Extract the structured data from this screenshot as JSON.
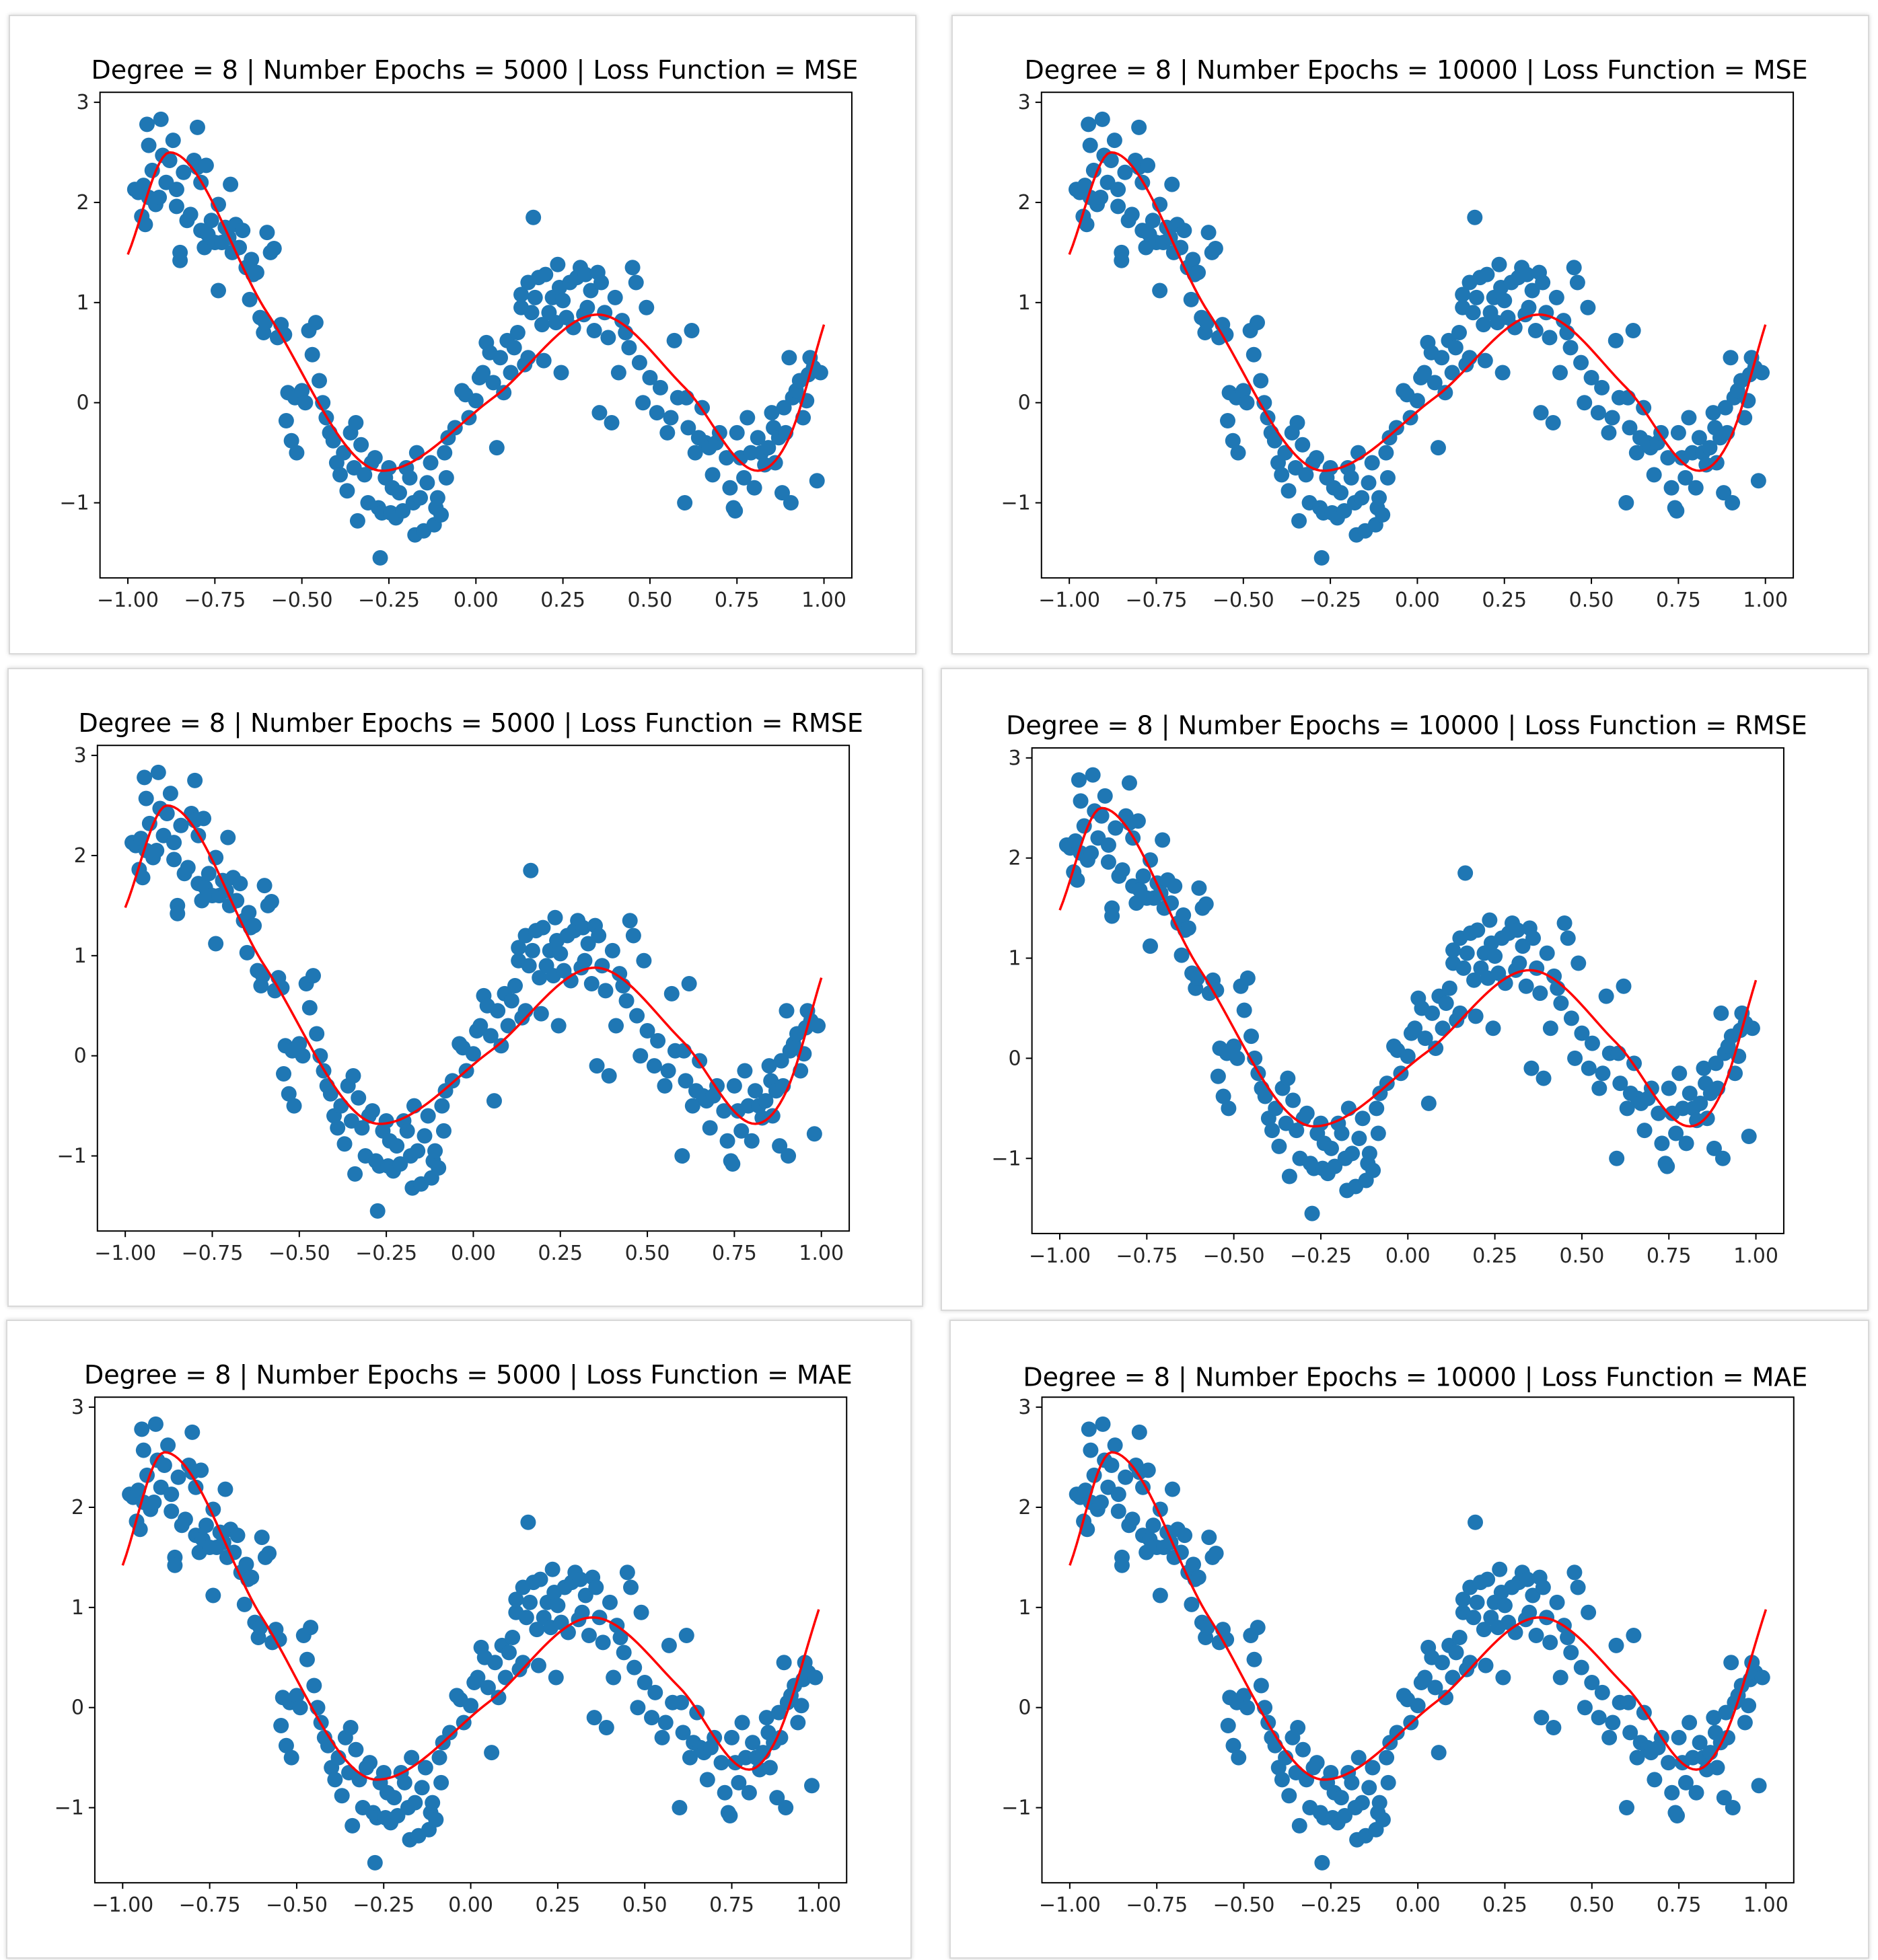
{
  "chart_data": [
    {
      "type": "scatter",
      "title": "Degree = 8 | Number Epochs = 5000 | Loss Function = MSE",
      "xlim": [
        -1.08,
        1.08
      ],
      "ylim": [
        -1.75,
        3.1
      ],
      "xticks": [
        -1.0,
        -0.75,
        -0.5,
        -0.25,
        0.0,
        0.25,
        0.5,
        0.75,
        1.0
      ],
      "xtick_labels": [
        "−1.00",
        "−0.75",
        "−0.50",
        "−0.25",
        "0.00",
        "0.25",
        "0.50",
        "0.75",
        "1.00"
      ],
      "yticks": [
        -1,
        0,
        1,
        2,
        3
      ],
      "ytick_labels": [
        "−1",
        "0",
        "1",
        "2",
        "3"
      ],
      "points_color": "#1f77b4",
      "curve_color": "#ff0000",
      "curve_variant": 0
    },
    {
      "type": "scatter",
      "title": "Degree = 8 | Number Epochs = 10000 | Loss Function = MSE",
      "xlim": [
        -1.08,
        1.08
      ],
      "ylim": [
        -1.75,
        3.1
      ],
      "xticks": [
        -1.0,
        -0.75,
        -0.5,
        -0.25,
        0.0,
        0.25,
        0.5,
        0.75,
        1.0
      ],
      "xtick_labels": [
        "−1.00",
        "−0.75",
        "−0.50",
        "−0.25",
        "0.00",
        "0.25",
        "0.50",
        "0.75",
        "1.00"
      ],
      "yticks": [
        -1,
        0,
        1,
        2,
        3
      ],
      "ytick_labels": [
        "−1",
        "0",
        "1",
        "2",
        "3"
      ],
      "points_color": "#1f77b4",
      "curve_color": "#ff0000",
      "curve_variant": 0
    },
    {
      "type": "scatter",
      "title": "Degree = 8 | Number Epochs = 5000 | Loss Function = RMSE",
      "xlim": [
        -1.08,
        1.08
      ],
      "ylim": [
        -1.75,
        3.1
      ],
      "xticks": [
        -1.0,
        -0.75,
        -0.5,
        -0.25,
        0.0,
        0.25,
        0.5,
        0.75,
        1.0
      ],
      "xtick_labels": [
        "−1.00",
        "−0.75",
        "−0.50",
        "−0.25",
        "0.00",
        "0.25",
        "0.50",
        "0.75",
        "1.00"
      ],
      "yticks": [
        -1,
        0,
        1,
        2,
        3
      ],
      "ytick_labels": [
        "−1",
        "0",
        "1",
        "2",
        "3"
      ],
      "points_color": "#1f77b4",
      "curve_color": "#ff0000",
      "curve_variant": 0
    },
    {
      "type": "scatter",
      "title": "Degree = 8 | Number Epochs = 10000 | Loss Function = RMSE",
      "xlim": [
        -1.08,
        1.08
      ],
      "ylim": [
        -1.75,
        3.1
      ],
      "xticks": [
        -1.0,
        -0.75,
        -0.5,
        -0.25,
        0.0,
        0.25,
        0.5,
        0.75,
        1.0
      ],
      "xtick_labels": [
        "−1.00",
        "−0.75",
        "−0.50",
        "−0.25",
        "0.00",
        "0.25",
        "0.50",
        "0.75",
        "1.00"
      ],
      "yticks": [
        -1,
        0,
        1,
        2,
        3
      ],
      "ytick_labels": [
        "−1",
        "0",
        "1",
        "2",
        "3"
      ],
      "points_color": "#1f77b4",
      "curve_color": "#ff0000",
      "curve_variant": 0
    },
    {
      "type": "scatter",
      "title": "Degree = 8 | Number Epochs = 5000 | Loss Function = MAE",
      "xlim": [
        -1.08,
        1.08
      ],
      "ylim": [
        -1.75,
        3.1
      ],
      "xticks": [
        -1.0,
        -0.75,
        -0.5,
        -0.25,
        0.0,
        0.25,
        0.5,
        0.75,
        1.0
      ],
      "xtick_labels": [
        "−1.00",
        "−0.75",
        "−0.50",
        "−0.25",
        "0.00",
        "0.25",
        "0.50",
        "0.75",
        "1.00"
      ],
      "yticks": [
        -1,
        0,
        1,
        2,
        3
      ],
      "ytick_labels": [
        "−1",
        "0",
        "1",
        "2",
        "3"
      ],
      "points_color": "#1f77b4",
      "curve_color": "#ff0000",
      "curve_variant": 1
    },
    {
      "type": "scatter",
      "title": "Degree = 8 | Number Epochs = 10000 | Loss Function = MAE",
      "xlim": [
        -1.08,
        1.08
      ],
      "ylim": [
        -1.75,
        3.1
      ],
      "xticks": [
        -1.0,
        -0.75,
        -0.5,
        -0.25,
        0.0,
        0.25,
        0.5,
        0.75,
        1.0
      ],
      "xtick_labels": [
        "−1.00",
        "−0.75",
        "−0.50",
        "−0.25",
        "0.00",
        "0.25",
        "0.50",
        "0.75",
        "1.00"
      ],
      "yticks": [
        -1,
        0,
        1,
        2,
        3
      ],
      "ytick_labels": [
        "−1",
        "0",
        "1",
        "2",
        "3"
      ],
      "points_color": "#1f77b4",
      "curve_color": "#ff0000",
      "curve_variant": 1
    }
  ],
  "scatter_points": [
    [
      -0.98,
      2.13
    ],
    [
      -0.97,
      2.1
    ],
    [
      -0.96,
      1.86
    ],
    [
      -0.95,
      1.78
    ],
    [
      -0.955,
      2.17
    ],
    [
      -0.94,
      2.05
    ],
    [
      -0.945,
      2.78
    ],
    [
      -0.94,
      2.57
    ],
    [
      -0.93,
      2.32
    ],
    [
      -0.92,
      1.98
    ],
    [
      -0.91,
      2.05
    ],
    [
      -0.905,
      2.83
    ],
    [
      -0.9,
      2.47
    ],
    [
      -0.89,
      2.2
    ],
    [
      -0.88,
      2.42
    ],
    [
      -0.87,
      2.62
    ],
    [
      -0.86,
      1.96
    ],
    [
      -0.86,
      2.13
    ],
    [
      -0.85,
      1.5
    ],
    [
      -0.85,
      1.42
    ],
    [
      -0.84,
      2.3
    ],
    [
      -0.83,
      1.82
    ],
    [
      -0.82,
      1.88
    ],
    [
      -0.81,
      2.42
    ],
    [
      -0.8,
      2.35
    ],
    [
      -0.79,
      2.2
    ],
    [
      -0.8,
      2.75
    ],
    [
      -0.79,
      1.72
    ],
    [
      -0.78,
      1.55
    ],
    [
      -0.77,
      1.68
    ],
    [
      -0.775,
      2.37
    ],
    [
      -0.76,
      1.82
    ],
    [
      -0.75,
      1.6
    ],
    [
      -0.74,
      1.98
    ],
    [
      -0.74,
      1.12
    ],
    [
      -0.73,
      1.6
    ],
    [
      -0.72,
      1.75
    ],
    [
      -0.71,
      1.65
    ],
    [
      -0.705,
      2.18
    ],
    [
      -0.7,
      1.5
    ],
    [
      -0.69,
      1.78
    ],
    [
      -0.68,
      1.55
    ],
    [
      -0.67,
      1.72
    ],
    [
      -0.66,
      1.35
    ],
    [
      -0.65,
      1.03
    ],
    [
      -0.645,
      1.43
    ],
    [
      -0.64,
      1.28
    ],
    [
      -0.63,
      1.3
    ],
    [
      -0.62,
      0.85
    ],
    [
      -0.61,
      0.7
    ],
    [
      -0.605,
      0.8
    ],
    [
      -0.6,
      1.7
    ],
    [
      -0.59,
      1.5
    ],
    [
      -0.58,
      1.54
    ],
    [
      -0.57,
      0.65
    ],
    [
      -0.56,
      0.78
    ],
    [
      -0.55,
      0.68
    ],
    [
      -0.545,
      -0.18
    ],
    [
      -0.54,
      0.1
    ],
    [
      -0.53,
      -0.38
    ],
    [
      -0.52,
      0.05
    ],
    [
      -0.515,
      -0.5
    ],
    [
      -0.5,
      0.12
    ],
    [
      -0.49,
      0.0
    ],
    [
      -0.48,
      0.72
    ],
    [
      -0.47,
      0.48
    ],
    [
      -0.46,
      0.8
    ],
    [
      -0.45,
      0.22
    ],
    [
      -0.44,
      0.0
    ],
    [
      -0.43,
      -0.15
    ],
    [
      -0.42,
      -0.3
    ],
    [
      -0.41,
      -0.38
    ],
    [
      -0.4,
      -0.6
    ],
    [
      -0.39,
      -0.72
    ],
    [
      -0.38,
      -0.5
    ],
    [
      -0.37,
      -0.88
    ],
    [
      -0.36,
      -0.3
    ],
    [
      -0.35,
      -0.65
    ],
    [
      -0.345,
      -0.2
    ],
    [
      -0.34,
      -1.18
    ],
    [
      -0.33,
      -0.42
    ],
    [
      -0.32,
      -0.72
    ],
    [
      -0.31,
      -1.0
    ],
    [
      -0.3,
      -0.6
    ],
    [
      -0.29,
      -0.55
    ],
    [
      -0.28,
      -1.05
    ],
    [
      -0.275,
      -1.55
    ],
    [
      -0.27,
      -1.1
    ],
    [
      -0.26,
      -0.75
    ],
    [
      -0.25,
      -0.65
    ],
    [
      -0.245,
      -1.1
    ],
    [
      -0.24,
      -0.85
    ],
    [
      -0.23,
      -1.15
    ],
    [
      -0.22,
      -0.9
    ],
    [
      -0.21,
      -1.08
    ],
    [
      -0.2,
      -0.65
    ],
    [
      -0.19,
      -0.75
    ],
    [
      -0.18,
      -1.0
    ],
    [
      -0.175,
      -1.32
    ],
    [
      -0.17,
      -0.5
    ],
    [
      -0.16,
      -0.95
    ],
    [
      -0.15,
      -1.28
    ],
    [
      -0.14,
      -0.8
    ],
    [
      -0.13,
      -0.6
    ],
    [
      -0.12,
      -1.22
    ],
    [
      -0.115,
      -1.05
    ],
    [
      -0.11,
      -0.95
    ],
    [
      -0.1,
      -1.12
    ],
    [
      -0.09,
      -0.5
    ],
    [
      -0.085,
      -0.75
    ],
    [
      -0.08,
      -0.35
    ],
    [
      -0.06,
      -0.25
    ],
    [
      -0.04,
      0.12
    ],
    [
      -0.03,
      0.08
    ],
    [
      -0.02,
      -0.15
    ],
    [
      0.0,
      0.02
    ],
    [
      0.01,
      0.25
    ],
    [
      0.02,
      0.3
    ],
    [
      0.03,
      0.6
    ],
    [
      0.04,
      0.5
    ],
    [
      0.05,
      0.2
    ],
    [
      0.06,
      -0.45
    ],
    [
      0.07,
      0.45
    ],
    [
      0.08,
      0.1
    ],
    [
      0.09,
      0.62
    ],
    [
      0.1,
      0.3
    ],
    [
      0.11,
      0.55
    ],
    [
      0.12,
      0.7
    ],
    [
      0.13,
      0.95
    ],
    [
      0.13,
      1.08
    ],
    [
      0.14,
      0.38
    ],
    [
      0.15,
      1.2
    ],
    [
      0.15,
      0.45
    ],
    [
      0.16,
      0.9
    ],
    [
      0.165,
      1.85
    ],
    [
      0.17,
      1.05
    ],
    [
      0.18,
      1.25
    ],
    [
      0.19,
      0.78
    ],
    [
      0.195,
      0.42
    ],
    [
      0.2,
      1.28
    ],
    [
      0.21,
      0.9
    ],
    [
      0.22,
      1.05
    ],
    [
      0.23,
      0.8
    ],
    [
      0.235,
      1.38
    ],
    [
      0.24,
      1.15
    ],
    [
      0.245,
      0.3
    ],
    [
      0.25,
      1.02
    ],
    [
      0.26,
      0.85
    ],
    [
      0.27,
      1.2
    ],
    [
      0.28,
      0.75
    ],
    [
      0.29,
      1.25
    ],
    [
      0.3,
      1.35
    ],
    [
      0.31,
      0.88
    ],
    [
      0.315,
      1.28
    ],
    [
      0.32,
      0.95
    ],
    [
      0.33,
      1.12
    ],
    [
      0.34,
      0.72
    ],
    [
      0.35,
      1.3
    ],
    [
      0.355,
      -0.1
    ],
    [
      0.36,
      1.2
    ],
    [
      0.37,
      0.9
    ],
    [
      0.38,
      0.65
    ],
    [
      0.39,
      -0.2
    ],
    [
      0.4,
      1.05
    ],
    [
      0.41,
      0.3
    ],
    [
      0.42,
      0.82
    ],
    [
      0.43,
      0.7
    ],
    [
      0.44,
      0.55
    ],
    [
      0.45,
      1.35
    ],
    [
      0.46,
      1.2
    ],
    [
      0.47,
      0.4
    ],
    [
      0.48,
      0.0
    ],
    [
      0.49,
      0.95
    ],
    [
      0.5,
      0.25
    ],
    [
      0.52,
      -0.1
    ],
    [
      0.53,
      0.15
    ],
    [
      0.55,
      -0.3
    ],
    [
      0.56,
      -0.15
    ],
    [
      0.57,
      0.62
    ],
    [
      0.58,
      0.05
    ],
    [
      0.6,
      -1.0
    ],
    [
      0.605,
      0.05
    ],
    [
      0.61,
      -0.25
    ],
    [
      0.62,
      0.72
    ],
    [
      0.63,
      -0.5
    ],
    [
      0.64,
      -0.35
    ],
    [
      0.65,
      -0.05
    ],
    [
      0.66,
      -0.4
    ],
    [
      0.67,
      -0.45
    ],
    [
      0.68,
      -0.72
    ],
    [
      0.69,
      -0.4
    ],
    [
      0.7,
      -0.3
    ],
    [
      0.72,
      -0.55
    ],
    [
      0.73,
      -0.85
    ],
    [
      0.74,
      -1.05
    ],
    [
      0.745,
      -1.08
    ],
    [
      0.75,
      -0.3
    ],
    [
      0.76,
      -0.55
    ],
    [
      0.77,
      -0.75
    ],
    [
      0.78,
      -0.15
    ],
    [
      0.79,
      -0.5
    ],
    [
      0.8,
      -0.85
    ],
    [
      0.81,
      -0.35
    ],
    [
      0.82,
      -0.5
    ],
    [
      0.83,
      -0.62
    ],
    [
      0.84,
      -0.45
    ],
    [
      0.85,
      -0.1
    ],
    [
      0.855,
      -0.25
    ],
    [
      0.86,
      -0.6
    ],
    [
      0.87,
      -0.35
    ],
    [
      0.88,
      -0.9
    ],
    [
      0.885,
      -0.05
    ],
    [
      0.89,
      -0.3
    ],
    [
      0.9,
      0.45
    ],
    [
      0.905,
      -1.0
    ],
    [
      0.91,
      0.05
    ],
    [
      0.92,
      0.12
    ],
    [
      0.93,
      0.22
    ],
    [
      0.94,
      -0.15
    ],
    [
      0.95,
      0.02
    ],
    [
      0.955,
      0.28
    ],
    [
      0.96,
      0.45
    ],
    [
      0.97,
      0.35
    ],
    [
      0.98,
      -0.78
    ],
    [
      0.99,
      0.3
    ]
  ]
}
